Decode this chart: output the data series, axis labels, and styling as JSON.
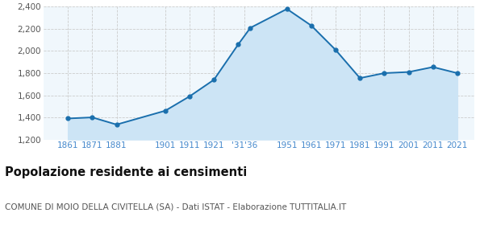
{
  "years": [
    1861,
    1871,
    1881,
    1901,
    1911,
    1921,
    1931,
    1936,
    1951,
    1961,
    1971,
    1981,
    1991,
    2001,
    2011,
    2021
  ],
  "population": [
    1390,
    1400,
    1335,
    1460,
    1590,
    1740,
    2060,
    2210,
    2380,
    2230,
    2010,
    1755,
    1800,
    1810,
    1855,
    1800
  ],
  "ylim": [
    1200,
    2400
  ],
  "yticks": [
    1200,
    1400,
    1600,
    1800,
    2000,
    2200,
    2400
  ],
  "xtick_pos": [
    1861,
    1871,
    1881,
    1901,
    1911,
    1921,
    1933.5,
    1951,
    1961,
    1971,
    1981,
    1991,
    2001,
    2011,
    2021
  ],
  "xtick_labels": [
    "1861",
    "1871",
    "1881",
    "1901",
    "1911",
    "1921",
    "'31'36",
    "1951",
    "1961",
    "1971",
    "1981",
    "1991",
    "2001",
    "2011",
    "2021"
  ],
  "xlim": [
    1851,
    2028
  ],
  "line_color": "#1a6fad",
  "fill_color": "#cce4f5",
  "marker_color": "#1a6fad",
  "grid_color": "#cccccc",
  "bg_color": "#f0f7fc",
  "title": "Popolazione residente ai censimenti",
  "subtitle": "COMUNE DI MOIO DELLA CIVITELLA (SA) - Dati ISTAT - Elaborazione TUTTITALIA.IT",
  "title_fontsize": 10.5,
  "subtitle_fontsize": 7.5,
  "tick_label_color": "#4488cc"
}
